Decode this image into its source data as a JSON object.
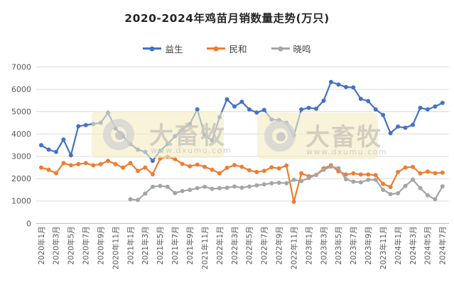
{
  "page": {
    "title": "2020-2024年鸡苗月销数量走势(万只)"
  },
  "watermark": {
    "brand": "大畜牧",
    "url": "www.dxumu.com",
    "badge_color": "#F3ECC2"
  },
  "axes": {
    "y_tick_labels": [
      "0",
      "1000",
      "2000",
      "3000",
      "4000",
      "5000",
      "6000",
      "7000"
    ]
  },
  "chart_data": {
    "type": "line",
    "title": "2020-2024年鸡苗月销数量走势(万只)",
    "ylabel": "",
    "xlabel": "",
    "ylim": [
      0,
      7000
    ],
    "ytick_step": 1000,
    "yticks": [
      0,
      1000,
      2000,
      3000,
      4000,
      5000,
      6000,
      7000
    ],
    "grid": true,
    "legend_position": "top",
    "x_label_every": 2,
    "categories": [
      "2020年1月",
      "2020年2月",
      "2020年3月",
      "2020年4月",
      "2020年5月",
      "2020年6月",
      "2020年7月",
      "2020年8月",
      "2020年9月",
      "2020年10月",
      "2020年11月",
      "2020年12月",
      "2021年1月",
      "2021年2月",
      "2021年3月",
      "2021年4月",
      "2021年5月",
      "2021年6月",
      "2021年7月",
      "2021年8月",
      "2021年9月",
      "2021年10月",
      "2021年11月",
      "2021年12月",
      "2022年1月",
      "2022年2月",
      "2022年3月",
      "2022年4月",
      "2022年5月",
      "2022年6月",
      "2022年7月",
      "2022年8月",
      "2022年9月",
      "2022年10月",
      "2022年11月",
      "2022年12月",
      "2023年1月",
      "2023年2月",
      "2023年3月",
      "2023年4月",
      "2023年5月",
      "2023年6月",
      "2023年7月",
      "2023年8月",
      "2023年9月",
      "2023年10月",
      "2023年11月",
      "2023年12月",
      "2024年1月",
      "2024年2月",
      "2024年3月",
      "2024年4月",
      "2024年5月",
      "2024年6月",
      "2024年7月"
    ],
    "series": [
      {
        "name": "益生",
        "slug": "yisheng",
        "color": "#4472C4",
        "values": [
          3500,
          3300,
          3200,
          3750,
          3050,
          4350,
          4400,
          4450,
          4500,
          4950,
          4250,
          3900,
          3550,
          3300,
          3200,
          2800,
          3250,
          3550,
          3900,
          4200,
          4450,
          5100,
          3950,
          3720,
          4750,
          5550,
          5230,
          5440,
          5100,
          4960,
          5075,
          4650,
          4620,
          4500,
          3930,
          5100,
          5170,
          5130,
          5490,
          6330,
          6210,
          6100,
          6080,
          5570,
          5470,
          5100,
          4850,
          4040,
          4330,
          4280,
          4410,
          5170,
          5100,
          5230,
          5390
        ]
      },
      {
        "name": "民和",
        "slug": "minhe",
        "color": "#ED7D31",
        "values": [
          2500,
          2400,
          2250,
          2700,
          2600,
          2650,
          2700,
          2600,
          2650,
          2800,
          2650,
          2500,
          2700,
          2350,
          2500,
          2200,
          2900,
          2980,
          2880,
          2660,
          2560,
          2630,
          2530,
          2400,
          2240,
          2490,
          2610,
          2530,
          2380,
          2300,
          2350,
          2510,
          2460,
          2590,
          970,
          2240,
          2110,
          2170,
          2460,
          2600,
          2330,
          2190,
          2240,
          2190,
          2190,
          2160,
          1770,
          1630,
          2300,
          2500,
          2530,
          2240,
          2320,
          2250,
          2270
        ]
      },
      {
        "name": "晓鸣",
        "slug": "xiaoming",
        "color": "#A5A5A5",
        "values": [
          null,
          null,
          null,
          null,
          null,
          null,
          null,
          null,
          null,
          null,
          null,
          null,
          1080,
          1050,
          1340,
          1640,
          1680,
          1640,
          1360,
          1450,
          1500,
          1580,
          1640,
          1550,
          1580,
          1600,
          1650,
          1600,
          1650,
          1700,
          1750,
          1800,
          1820,
          1800,
          1950,
          1890,
          2030,
          2170,
          2400,
          2540,
          2470,
          1980,
          1870,
          1840,
          1950,
          1950,
          1500,
          1310,
          1350,
          1680,
          1960,
          1580,
          1260,
          1080,
          1660
        ]
      }
    ]
  }
}
